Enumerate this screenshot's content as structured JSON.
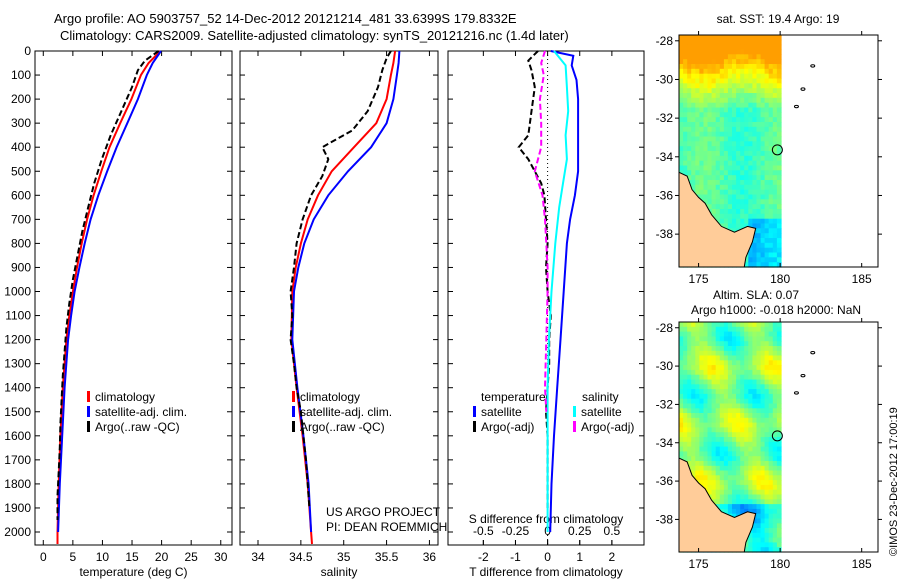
{
  "title_line1": "Argo profile: AO 5903757_52 14-Dec-2012 20121214_481 33.6399S 179.8332E",
  "title_line2": "Climatology: CARS2009. Satellite-adjusted climatology: synTS_20121216.nc (1.4d later)",
  "credit": "US ARGO PROJECT",
  "pi": "PI: DEAN ROEMMICH",
  "stamp": "©IMOS 23-Dec-2012 17:00:19",
  "colors": {
    "climatology": "#ff0000",
    "satellite": "#0000ff",
    "argo": "#000000",
    "sal_satellite": "#00ffff",
    "sal_argo": "#ff00ff",
    "land": "#ffcc99"
  },
  "chart_data": [
    {
      "type": "line",
      "id": "temperature",
      "xlabel": "temperature (deg C)",
      "ylabel": "",
      "xlim": [
        -1.4,
        31.9
      ],
      "ylim": [
        2054,
        0
      ],
      "xticks": [
        0,
        5,
        10,
        15,
        20,
        25,
        30
      ],
      "yticks": [
        0,
        100,
        200,
        300,
        400,
        500,
        600,
        700,
        800,
        900,
        1000,
        1100,
        1200,
        1300,
        1400,
        1500,
        1600,
        1700,
        1800,
        1900,
        2000
      ],
      "legend": [
        "climatology",
        "satellite-adj. clim.",
        "Argo(..raw -QC)"
      ],
      "legend_placement": "center-right",
      "series": [
        {
          "name": "climatology",
          "color": "#ff0000",
          "depth": [
            0,
            50,
            100,
            200,
            300,
            400,
            500,
            600,
            700,
            800,
            900,
            1000,
            1100,
            1200,
            1400,
            1600,
            1800,
            2000,
            2050
          ],
          "values": [
            19.8,
            17.8,
            16.5,
            14.9,
            13.0,
            11.2,
            9.8,
            8.5,
            7.4,
            6.5,
            5.7,
            5.0,
            4.4,
            3.9,
            3.3,
            2.9,
            2.6,
            2.4,
            2.4
          ]
        },
        {
          "name": "satellite-adj. clim.",
          "color": "#0000ff",
          "depth": [
            0,
            50,
            100,
            200,
            300,
            400,
            500,
            600,
            700,
            800,
            900,
            1000,
            1100,
            1200,
            1400,
            1600,
            1800,
            2000
          ],
          "values": [
            19.9,
            18.5,
            17.5,
            16.0,
            14.2,
            12.4,
            10.8,
            9.3,
            8.0,
            7.0,
            6.1,
            5.3,
            4.7,
            4.2,
            3.6,
            3.2,
            2.8,
            2.5
          ]
        },
        {
          "name": "Argo(..raw -QC)",
          "color": "#000000",
          "dash": true,
          "depth": [
            0,
            40,
            80,
            150,
            250,
            350,
            450,
            550,
            650,
            750,
            850,
            950,
            1050,
            1150,
            1250,
            1350,
            1450,
            1550,
            1650,
            1750,
            1850,
            1950
          ],
          "values": [
            19.5,
            17.2,
            16.0,
            15.0,
            13.2,
            11.4,
            9.9,
            8.6,
            7.6,
            6.6,
            5.8,
            5.0,
            4.4,
            3.9,
            3.6,
            3.3,
            3.1,
            2.9,
            2.8,
            2.6,
            2.4,
            2.4
          ]
        }
      ]
    },
    {
      "type": "line",
      "id": "salinity",
      "xlabel": "salinity",
      "xlim": [
        33.79,
        36.1
      ],
      "ylim": [
        2054,
        0
      ],
      "xticks": [
        34,
        34.5,
        35,
        35.5,
        36
      ],
      "legend": [
        "climatology",
        "satellite-adj. clim.",
        "Argo(..raw -QC)"
      ],
      "legend_placement": "center-right",
      "series": [
        {
          "name": "climatology",
          "color": "#ff0000",
          "depth": [
            0,
            50,
            100,
            200,
            300,
            400,
            500,
            600,
            700,
            800,
            900,
            1000,
            1200,
            1400,
            1600,
            1800,
            2000,
            2050
          ],
          "values": [
            35.6,
            35.58,
            35.55,
            35.5,
            35.38,
            35.12,
            34.86,
            34.7,
            34.58,
            34.5,
            34.44,
            34.4,
            34.39,
            34.45,
            34.52,
            34.58,
            34.62,
            34.63
          ]
        },
        {
          "name": "satellite-adj. clim.",
          "color": "#0000ff",
          "depth": [
            0,
            50,
            100,
            200,
            300,
            400,
            500,
            600,
            700,
            800,
            900,
            1000,
            1200,
            1400,
            1600,
            1800,
            2000
          ],
          "values": [
            35.65,
            35.64,
            35.62,
            35.58,
            35.5,
            35.32,
            35.05,
            34.82,
            34.65,
            34.54,
            34.47,
            34.42,
            34.4,
            34.46,
            34.53,
            34.59,
            34.62
          ]
        },
        {
          "name": "Argo(..raw -QC)",
          "color": "#000000",
          "dash": true,
          "depth": [
            0,
            30,
            80,
            150,
            250,
            330,
            400,
            450,
            520,
            600,
            700,
            800,
            900,
            1000,
            1100,
            1200,
            1300,
            1400,
            1500,
            1600,
            1700,
            1800,
            1900
          ],
          "values": [
            35.55,
            35.5,
            35.45,
            35.4,
            35.28,
            35.1,
            34.75,
            34.82,
            34.75,
            34.62,
            34.52,
            34.45,
            34.42,
            34.38,
            34.4,
            34.38,
            34.42,
            34.45,
            34.5,
            34.53,
            34.56,
            34.58,
            34.6
          ]
        }
      ]
    },
    {
      "type": "line",
      "id": "difference",
      "xlabel": "T difference from climatology",
      "xlabel2": "S difference from climatology",
      "xlim": [
        -3.1,
        3.0
      ],
      "ylim": [
        2054,
        0
      ],
      "xticks": [
        -2,
        -1,
        0,
        1,
        2
      ],
      "xticks2": [
        -0.5,
        -0.25,
        0,
        0.25,
        0.5
      ],
      "xtick2_labels": [
        "-0.5",
        "-0.25",
        "0",
        "0.25",
        "0.5"
      ],
      "legend_headers": [
        "temperature",
        "salinity"
      ],
      "legend": [
        "satellite",
        "Argo(-adj)",
        "satellite",
        "Argo(-adj)"
      ],
      "series": [
        {
          "name": "T satellite",
          "color": "#0000ff",
          "depth": [
            0,
            20,
            60,
            120,
            200,
            300,
            400,
            500,
            600,
            700,
            800,
            1000,
            1200,
            1400,
            1600,
            1800,
            2000
          ],
          "values": [
            0.1,
            0.8,
            0.75,
            0.9,
            0.95,
            0.95,
            0.95,
            0.95,
            0.85,
            0.7,
            0.6,
            0.5,
            0.4,
            0.3,
            0.2,
            0.12,
            0.08
          ]
        },
        {
          "name": "T Argo(-adj)",
          "color": "#000000",
          "dash": true,
          "depth": [
            0,
            40,
            80,
            150,
            250,
            350,
            400,
            450,
            500,
            550,
            600,
            700,
            800,
            900,
            1000,
            1100,
            1200,
            1300,
            1400,
            1500,
            1600,
            1700,
            1800,
            1900
          ],
          "values": [
            -0.3,
            -0.6,
            -0.5,
            -0.4,
            -0.5,
            -0.6,
            -0.9,
            -0.6,
            -0.4,
            -0.2,
            -0.1,
            -0.05,
            0.0,
            -0.05,
            0.0,
            0.1,
            0.05,
            0.05,
            0.0,
            -0.05,
            0.0,
            0.0,
            0.0,
            0.0
          ]
        },
        {
          "name": "S satellite",
          "color": "#00ffff",
          "depth": [
            0,
            60,
            150,
            250,
            350,
            450,
            550,
            650,
            800,
            1000,
            1200,
            1400,
            1600,
            1800,
            2000
          ],
          "values": [
            0.05,
            0.14,
            0.15,
            0.16,
            0.14,
            0.15,
            0.12,
            0.09,
            0.06,
            0.03,
            0.01,
            0.0,
            0.0,
            0.0,
            0.0
          ]
        },
        {
          "name": "S Argo(-adj)",
          "color": "#ff00ff",
          "dash": true,
          "depth": [
            0,
            50,
            100,
            200,
            300,
            400,
            500,
            600,
            700,
            800,
            900,
            1000,
            1200,
            1400,
            1500
          ],
          "values": [
            -0.02,
            -0.05,
            -0.03,
            -0.06,
            -0.05,
            -0.05,
            -0.1,
            -0.04,
            -0.02,
            -0.01,
            0.0,
            0.0,
            -0.01,
            -0.02,
            -0.01
          ]
        }
      ]
    },
    {
      "type": "heatmap",
      "id": "sst-map",
      "title": "sat. SST: 19.4 Argo: 19",
      "xticks": [
        175,
        180,
        185
      ],
      "yticks": [
        -28,
        -30,
        -32,
        -34,
        -36,
        -38
      ],
      "xlim": [
        173.8,
        186.0
      ],
      "ylim": [
        -39.7,
        -27.7
      ],
      "argo_position": [
        179.83,
        -33.64
      ]
    },
    {
      "type": "heatmap",
      "id": "sla-map",
      "title": "Altim. SLA: 0.07",
      "subtitle": "Argo h1000: -0.018 h2000: NaN",
      "xticks": [
        175,
        180,
        185
      ],
      "yticks": [
        -28,
        -30,
        -32,
        -34,
        -36,
        -38
      ],
      "xlim": [
        173.8,
        186.0
      ],
      "ylim": [
        -39.7,
        -27.7
      ],
      "argo_position": [
        179.83,
        -33.64
      ]
    }
  ]
}
